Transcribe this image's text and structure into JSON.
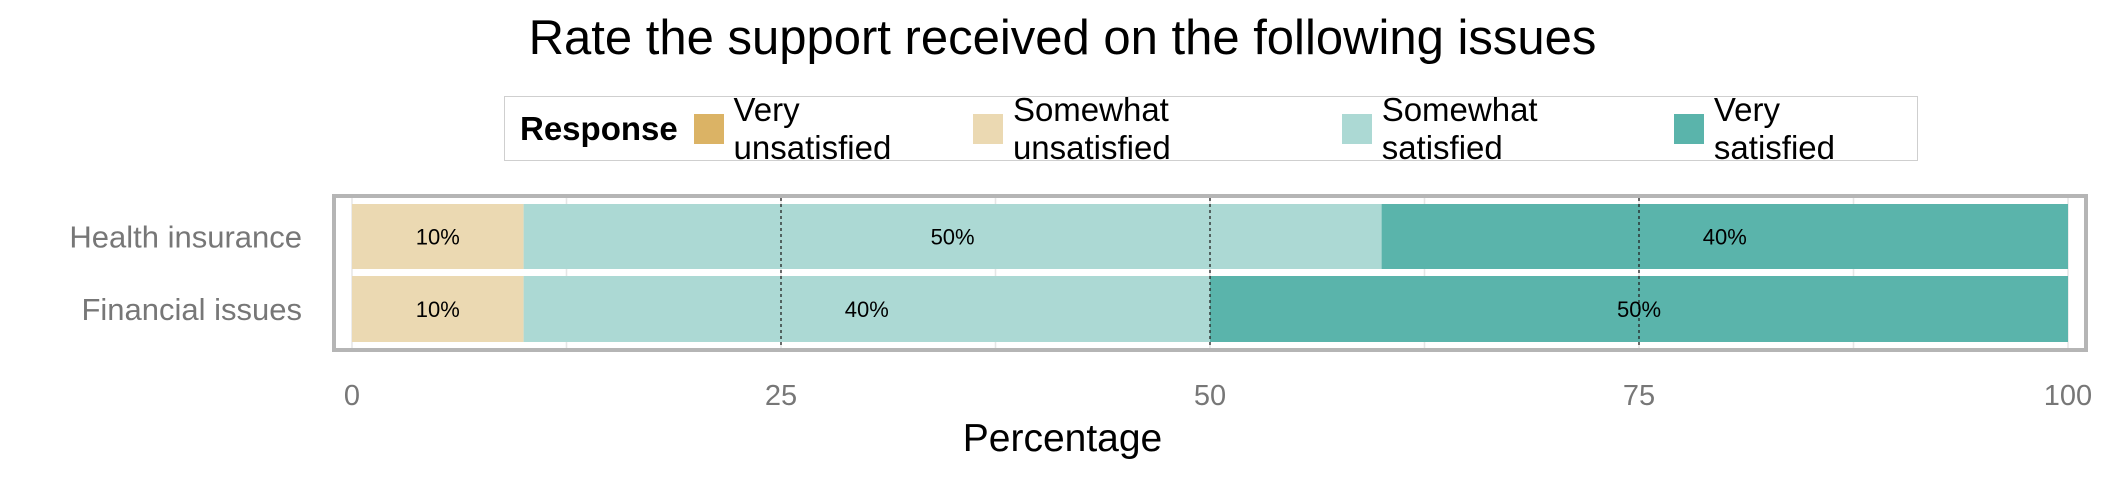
{
  "chart_data": {
    "type": "bar",
    "orientation": "horizontal",
    "stacked": true,
    "title": "Rate the support received on the following issues",
    "xlabel": "Percentage",
    "ylabel": "",
    "xlim": [
      0,
      100
    ],
    "x_ticks": [
      0,
      25,
      50,
      75,
      100
    ],
    "categories": [
      "Health insurance",
      "Financial issues"
    ],
    "legend": {
      "title": "Response",
      "placement": "top",
      "entries": [
        "Very unsatisfied",
        "Somewhat unsatisfied",
        "Somewhat satisfied",
        "Very satisfied"
      ]
    },
    "series": [
      {
        "name": "Very unsatisfied",
        "color": "#dbb365",
        "values": [
          0,
          0
        ],
        "labels": [
          "",
          ""
        ]
      },
      {
        "name": "Somewhat unsatisfied",
        "color": "#ebd9b2",
        "values": [
          10,
          10
        ],
        "labels": [
          "10%",
          "10%"
        ]
      },
      {
        "name": "Somewhat satisfied",
        "color": "#acd9d4",
        "values": [
          50,
          40
        ],
        "labels": [
          "50%",
          "40%"
        ]
      },
      {
        "name": "Very satisfied",
        "color": "#5ab4ab",
        "values": [
          40,
          50
        ],
        "labels": [
          "40%",
          "50%"
        ]
      }
    ],
    "grid": true,
    "reference_lines": [
      25,
      50,
      75
    ]
  }
}
